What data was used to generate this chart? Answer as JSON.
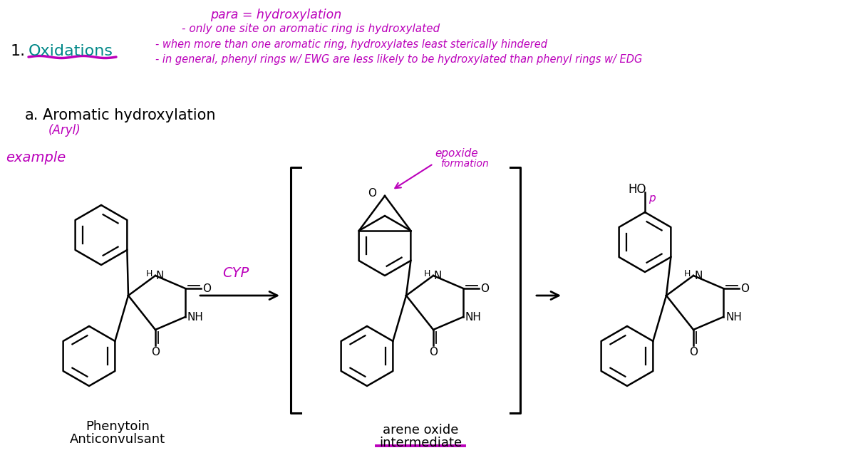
{
  "bg_color": "#ffffff",
  "handwriting_color": "#bb00bb",
  "text_color": "#000000",
  "teal_color": "#008888",
  "figwidth": 12.04,
  "figheight": 6.67,
  "dpi": 100,
  "top1": "para = hydroxylation",
  "top2": "- only one site on aromatic ring is hydroxylated",
  "top3": "- when more than one aromatic ring, hydroxylates least sterically hindered",
  "top4": "- in general, phenyl rings w/ EWG are less likely to be hydroxylated than phenyl rings w/ EDG",
  "lbl_oxidations": "Oxidations",
  "lbl_a": "a.",
  "lbl_ah": "Aromatic hydroxylation",
  "lbl_aryl": "(Aryl)",
  "lbl_example": "example",
  "lbl_cyp": "CYP",
  "lbl_epoxide": "epoxide",
  "lbl_formation": "formation",
  "lbl_ph1": "Phenytoin",
  "lbl_ph2": "Anticonvulsant",
  "lbl_ar1": "arene oxide",
  "lbl_ar2": "intermediate",
  "lbl_HO": "HO",
  "lbl_p": "p"
}
